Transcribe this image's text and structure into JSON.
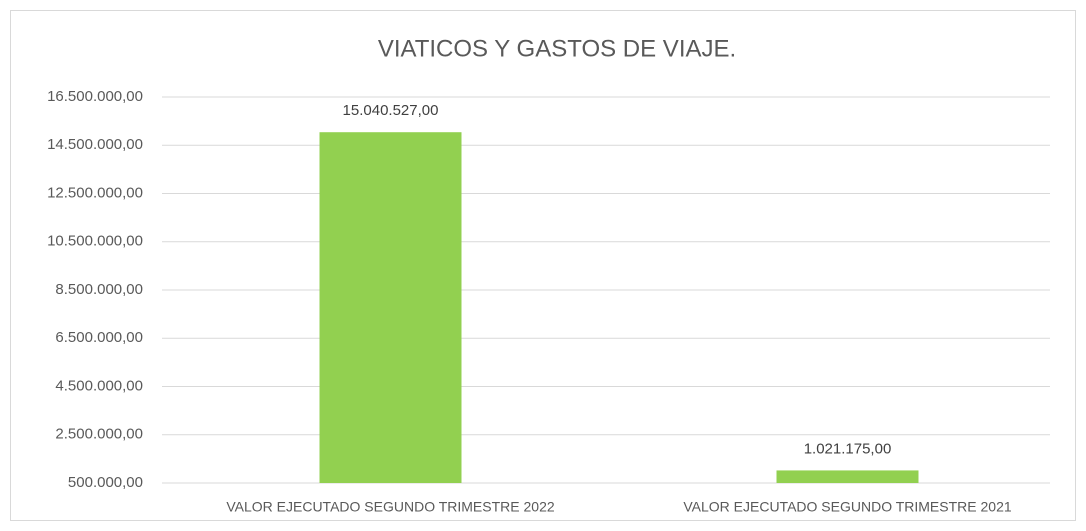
{
  "chart_data": {
    "type": "bar",
    "title": "VIATICOS Y GASTOS DE VIAJE.",
    "categories": [
      "VALOR EJECUTADO SEGUNDO TRIMESTRE 2022",
      "VALOR EJECUTADO SEGUNDO TRIMESTRE 2021"
    ],
    "values": [
      15040527,
      1021175
    ],
    "value_labels": [
      "15.040.527,00",
      "1.021.175,00"
    ],
    "color": "#92d050",
    "ylim": [
      500000,
      16500000
    ],
    "yticks": [
      {
        "value": 500000,
        "label": "500.000,00"
      },
      {
        "value": 2500000,
        "label": "2.500.000,00"
      },
      {
        "value": 4500000,
        "label": "4.500.000,00"
      },
      {
        "value": 6500000,
        "label": "6.500.000,00"
      },
      {
        "value": 8500000,
        "label": "8.500.000,00"
      },
      {
        "value": 10500000,
        "label": "10.500.000,00"
      },
      {
        "value": 12500000,
        "label": "12.500.000,00"
      },
      {
        "value": 14500000,
        "label": "14.500.000,00"
      },
      {
        "value": 16500000,
        "label": "16.500.000,00"
      }
    ],
    "grid": true
  }
}
